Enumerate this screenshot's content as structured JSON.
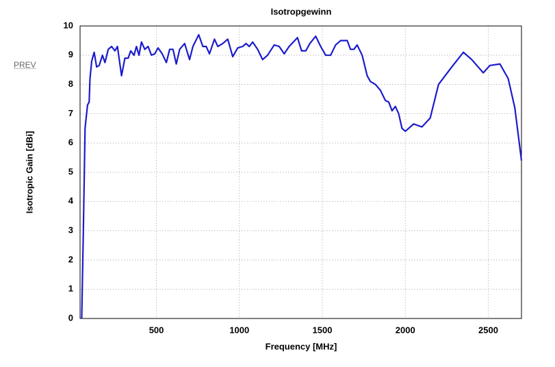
{
  "prev_link": "PREV",
  "chart_data": {
    "type": "line",
    "title": "Isotropgewinn",
    "xlabel": "Frequency [MHz]",
    "ylabel": "Isotropic Gain [dBi]",
    "x": [
      50,
      60,
      70,
      85,
      95,
      100,
      110,
      125,
      140,
      155,
      175,
      190,
      210,
      230,
      250,
      265,
      290,
      310,
      330,
      345,
      365,
      380,
      395,
      410,
      430,
      450,
      470,
      490,
      510,
      535,
      560,
      580,
      600,
      620,
      640,
      670,
      700,
      720,
      755,
      780,
      800,
      820,
      850,
      870,
      900,
      930,
      960,
      990,
      1020,
      1040,
      1060,
      1080,
      1110,
      1140,
      1170,
      1210,
      1240,
      1270,
      1300,
      1350,
      1375,
      1400,
      1425,
      1460,
      1490,
      1520,
      1550,
      1580,
      1610,
      1650,
      1670,
      1690,
      1710,
      1740,
      1770,
      1790,
      1820,
      1850,
      1880,
      1900,
      1920,
      1940,
      1960,
      1980,
      2000,
      2050,
      2100,
      2150,
      2200,
      2280,
      2350,
      2400,
      2470,
      2510,
      2570,
      2620,
      2660,
      2700
    ],
    "series": [
      {
        "name": "Isotropic Gain",
        "color": "#1a1acc",
        "values": [
          0,
          3,
          6.5,
          7.3,
          7.4,
          8.2,
          8.8,
          9.1,
          8.6,
          8.65,
          9.0,
          8.75,
          9.2,
          9.3,
          9.15,
          9.3,
          8.3,
          8.9,
          8.9,
          9.15,
          9.0,
          9.3,
          9.0,
          9.45,
          9.2,
          9.3,
          9.0,
          9.05,
          9.25,
          9.05,
          8.75,
          9.2,
          9.2,
          8.7,
          9.2,
          9.4,
          8.85,
          9.3,
          9.7,
          9.3,
          9.3,
          9.05,
          9.55,
          9.3,
          9.4,
          9.55,
          8.95,
          9.25,
          9.3,
          9.4,
          9.3,
          9.45,
          9.2,
          8.85,
          9.0,
          9.35,
          9.3,
          9.05,
          9.3,
          9.6,
          9.15,
          9.15,
          9.4,
          9.65,
          9.3,
          9.0,
          9.0,
          9.35,
          9.5,
          9.5,
          9.2,
          9.2,
          9.35,
          9.0,
          8.3,
          8.1,
          8.0,
          7.8,
          7.45,
          7.4,
          7.1,
          7.25,
          7.0,
          6.5,
          6.4,
          6.65,
          6.55,
          6.85,
          8.0,
          8.6,
          9.1,
          8.85,
          8.4,
          8.65,
          8.7,
          8.2,
          7.2,
          5.4
        ]
      }
    ],
    "xlim": [
      40,
      2700
    ],
    "ylim": [
      0,
      10
    ],
    "xticks": [
      500,
      1000,
      1500,
      2000,
      2500
    ],
    "yticks": [
      0,
      1,
      2,
      3,
      4,
      5,
      6,
      7,
      8,
      9,
      10
    ],
    "grid": true
  }
}
